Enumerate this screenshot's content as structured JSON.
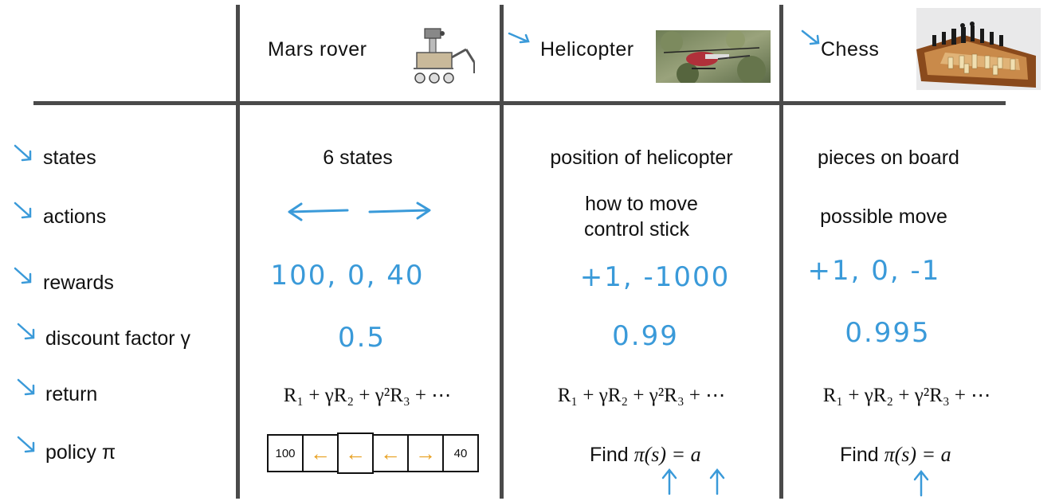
{
  "columns": {
    "mars": {
      "title": "Mars rover",
      "image_icon": "mars-rover-robot"
    },
    "heli": {
      "title": "Helicopter",
      "image_icon": "helicopter-photo"
    },
    "chess": {
      "title": "Chess",
      "image_icon": "chessboard-photo"
    }
  },
  "rows": {
    "states": "states",
    "actions": "actions",
    "rewards": "rewards",
    "discount": "discount factor γ",
    "return": "return",
    "policy": "policy π"
  },
  "mars": {
    "states": "6 states",
    "actions_icon": "left-right-arrows",
    "rewards": "100, 0, 40",
    "discount": "0.5",
    "policy_cells": [
      {
        "text": "100",
        "type": "text"
      },
      {
        "text": "←",
        "type": "arrow"
      },
      {
        "text": "←",
        "type": "arrow"
      },
      {
        "text": "←",
        "type": "arrow"
      },
      {
        "text": "→",
        "type": "arrow"
      },
      {
        "text": "40",
        "type": "text"
      }
    ]
  },
  "heli": {
    "states": "position of helicopter",
    "actions_line1": "how to move",
    "actions_line2": "control stick",
    "rewards": "+1, -1000",
    "discount": "0.99"
  },
  "chess": {
    "states": "pieces on board",
    "actions": "possible move",
    "rewards": "+1, 0, -1",
    "discount": "0.995"
  },
  "return_formula": "R₁ + γR₂ + γ²R₃ + ⋯",
  "find_label": "Find",
  "find_formula": "π(s) = a",
  "colors": {
    "ink": "#111111",
    "annotation_blue": "#3a9ad9",
    "policy_arrow": "#e8a020",
    "grid": "#4a4a4a"
  }
}
